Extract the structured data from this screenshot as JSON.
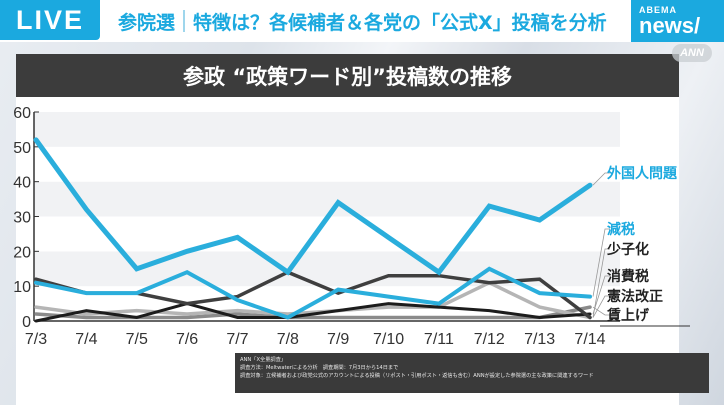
{
  "header": {
    "live_label": "LIVE",
    "headline_topic": "参院選",
    "headline_text": "特徴は？各候補者＆各党の「公式X」投稿を分析",
    "logo_top": "ABEMA",
    "logo_bottom": "news/",
    "watermark": "ANN"
  },
  "colors": {
    "accent_blue": "#1ba9df",
    "title_bar": "#3c3c3c"
  },
  "chart_data": {
    "type": "line",
    "title": "参政 “政策ワード別”投稿数の推移",
    "xlabel": "",
    "ylabel": "",
    "ylim": [
      0,
      60
    ],
    "yticks": [
      0,
      10,
      20,
      30,
      40,
      50,
      60
    ],
    "grid": "horizontal alternating bands",
    "legend_position": "right, inline labels",
    "categories": [
      "7/3",
      "7/4",
      "7/5",
      "7/6",
      "7/7",
      "7/8",
      "7/9",
      "7/10",
      "7/11",
      "7/12",
      "7/13",
      "7/14"
    ],
    "series": [
      {
        "name": "外国人問題",
        "color": "#2aaedc",
        "width": 5,
        "values": [
          52,
          32,
          15,
          20,
          24,
          14,
          34,
          24,
          14,
          33,
          29,
          39
        ]
      },
      {
        "name": "減税",
        "color": "#2aaedc",
        "width": 4,
        "values": [
          11,
          8,
          8,
          14,
          6,
          1,
          9,
          7,
          5,
          15,
          8,
          7
        ]
      },
      {
        "name": "少子化",
        "color": "#3f3f3f",
        "width": 3.5,
        "values": [
          12,
          8,
          8,
          5,
          7,
          14,
          8,
          13,
          13,
          11,
          12,
          1
        ]
      },
      {
        "name": "消費税",
        "color": "#1c1c1c",
        "width": 3,
        "values": [
          0,
          3,
          1,
          5,
          1,
          1,
          3,
          5,
          4,
          3,
          1,
          2
        ]
      },
      {
        "name": "憲法改正",
        "color": "#b5b5b5",
        "width": 3.5,
        "values": [
          4,
          2,
          3,
          2,
          3,
          2,
          3,
          4,
          4,
          11,
          4,
          1
        ]
      },
      {
        "name": "賃上げ",
        "color": "#8a8a8a",
        "width": 3.5,
        "values": [
          2,
          1,
          1,
          1,
          2,
          1,
          1,
          1,
          1,
          1,
          1,
          4
        ]
      }
    ],
    "labels": [
      {
        "text": "外国人問題",
        "color": "#1ba9df"
      },
      {
        "text": "減税",
        "color": "#1ba9df"
      },
      {
        "text": "少子化",
        "color": "#222222"
      },
      {
        "text": "消費税",
        "color": "#222222"
      },
      {
        "text": "憲法改正",
        "color": "#222222"
      },
      {
        "text": "賃上げ",
        "color": "#222222"
      }
    ]
  },
  "footnote": {
    "line1": "ANN「X全量調査」",
    "line2": "調査方法：Meltwaterによる分析　調査期間：7月3日から14日まで",
    "line3": "調査対象：立候補者および政党公式のアカウントによる投稿（リポスト・引用ポスト・返信も含む）ANNが設定した参院選の主な政策に関連するワード"
  }
}
